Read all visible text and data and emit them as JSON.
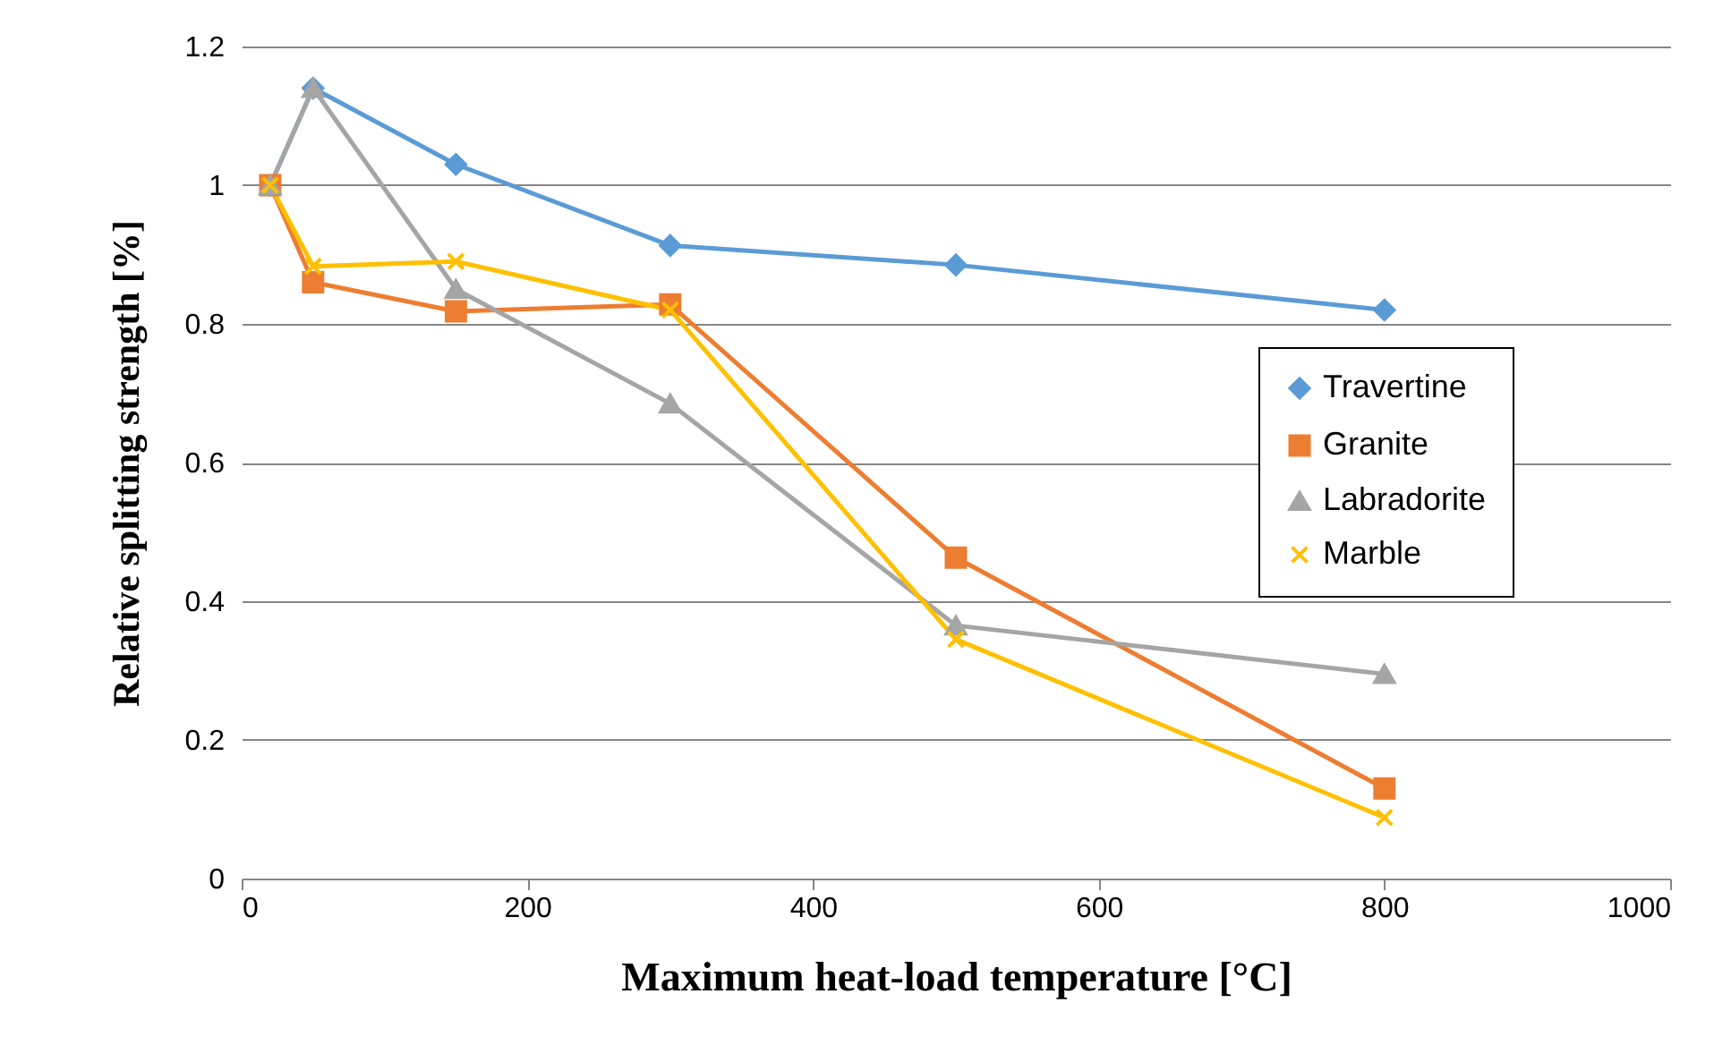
{
  "chart_data": {
    "type": "line",
    "xlabel": "Maximum heat-load temperature [°C]",
    "ylabel": "Relative splitting strength [%]",
    "xlim": [
      0,
      1000
    ],
    "xticks": [
      0,
      200,
      400,
      600,
      800,
      1000
    ],
    "ylim": [
      0,
      1.2
    ],
    "yticks": [
      0,
      0.2,
      0.4,
      0.6,
      0.8,
      1,
      1.2
    ],
    "grid": "y",
    "legend": "right",
    "x": [
      20,
      50,
      150,
      300,
      500,
      800
    ],
    "series": [
      {
        "name": "Travertine",
        "color": "#5b9bd5",
        "marker": "diamond",
        "values": [
          1.0,
          1.14,
          1.03,
          0.913,
          0.885,
          0.82
        ]
      },
      {
        "name": "Granite",
        "color": "#ed7d31",
        "marker": "square",
        "values": [
          1.0,
          0.86,
          0.818,
          0.828,
          0.463,
          0.13
        ]
      },
      {
        "name": "Labradorite",
        "color": "#a5a5a5",
        "marker": "triangle",
        "values": [
          1.0,
          1.14,
          0.85,
          0.685,
          0.365,
          0.295
        ]
      },
      {
        "name": "Marble",
        "color": "#ffc000",
        "marker": "cross",
        "values": [
          1.0,
          0.883,
          0.89,
          0.82,
          0.345,
          0.088
        ]
      }
    ]
  }
}
